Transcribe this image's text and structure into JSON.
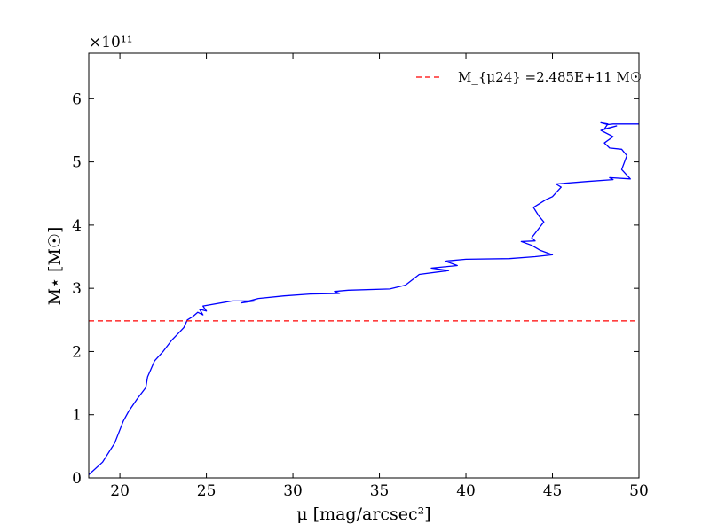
{
  "chart_data": {
    "type": "line",
    "xlabel": "μ [mag/arcsec²]",
    "ylabel": "M⋆ [M☉]",
    "y_scale_label": "×10¹¹",
    "xlim": [
      18.2,
      50
    ],
    "ylim": [
      0,
      6.72
    ],
    "y_unit_multiplier": 100000000000.0,
    "x_ticks": [
      20,
      25,
      30,
      35,
      40,
      45,
      50
    ],
    "y_ticks": [
      0,
      1,
      2,
      3,
      4,
      5,
      6
    ],
    "legend_position": "top-right",
    "grid": false,
    "series": [
      {
        "type": "line",
        "color": "#0000ff",
        "x": [
          18.2,
          19.0,
          19.7,
          20.2,
          20.5,
          21.0,
          21.5,
          21.6,
          22.0,
          22.5,
          23.0,
          23.5,
          23.7,
          23.9,
          24.2,
          24.5,
          24.8,
          24.6,
          25.0,
          24.8,
          26.5,
          27.8,
          27.0,
          28.0,
          29.5,
          31.0,
          32.7,
          32.4,
          33.2,
          35.6,
          36.5,
          37.3,
          39.0,
          38.0,
          39.5,
          38.8,
          40.0,
          42.5,
          44.0,
          45.0,
          44.3,
          43.8,
          43.2,
          44.0,
          43.8,
          44.5,
          44.2,
          43.9,
          44.6,
          45.0,
          45.5,
          45.2,
          47.0,
          48.5,
          48.3,
          49.5,
          49.0,
          49.3,
          49.0,
          48.3,
          48.0,
          48.5,
          47.8,
          48.7,
          48.0,
          48.2,
          47.8,
          48.2,
          48.5,
          50.0
        ],
        "y": [
          0.05,
          0.25,
          0.55,
          0.9,
          1.05,
          1.25,
          1.43,
          1.6,
          1.85,
          2.0,
          2.18,
          2.32,
          2.38,
          2.5,
          2.55,
          2.62,
          2.58,
          2.67,
          2.64,
          2.72,
          2.8,
          2.8,
          2.77,
          2.84,
          2.88,
          2.91,
          2.92,
          2.95,
          2.97,
          2.99,
          3.05,
          3.22,
          3.28,
          3.32,
          3.36,
          3.43,
          3.46,
          3.47,
          3.5,
          3.53,
          3.6,
          3.68,
          3.74,
          3.75,
          3.8,
          4.05,
          4.15,
          4.28,
          4.4,
          4.45,
          4.6,
          4.65,
          4.69,
          4.72,
          4.75,
          4.73,
          4.88,
          5.1,
          5.2,
          5.22,
          5.3,
          5.4,
          5.5,
          5.57,
          5.52,
          5.6,
          5.62,
          5.59,
          5.6,
          5.6
        ]
      },
      {
        "type": "hline",
        "name": "M_{μ24} =2.485E+11 M☉",
        "color": "#ff0000",
        "dash": "dashed",
        "y": 2.485
      }
    ]
  }
}
